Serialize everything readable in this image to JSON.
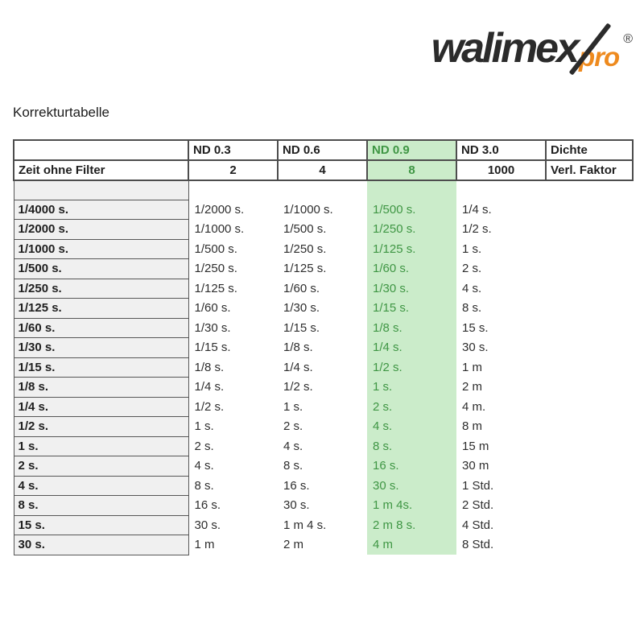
{
  "logo": {
    "brand": "walimex",
    "sub": "pro",
    "registered": "®",
    "brand_color": "#2b2b2b",
    "sub_color": "#ee8a1e"
  },
  "page_title": "Korrekturtabelle",
  "table": {
    "highlight_column": "ND 0.9",
    "colors": {
      "highlight_bg": "#cbecca",
      "highlight_text": "#3f9644",
      "row_header_bg": "#f0f0f0",
      "header_border": "#4d4d4d"
    },
    "header_row1": [
      "",
      "ND 0.3",
      "ND 0.6",
      "ND 0.9",
      "ND 3.0",
      "Dichte"
    ],
    "header_row2": [
      "Zeit ohne Filter",
      "2",
      "4",
      "8",
      "1000",
      "Verl. Faktor"
    ],
    "rows": [
      [
        "1/4000 s.",
        "1/2000 s.",
        "1/1000 s.",
        "1/500 s.",
        "1/4 s."
      ],
      [
        "1/2000 s.",
        "1/1000 s.",
        "1/500 s.",
        "1/250 s.",
        "1/2 s."
      ],
      [
        "1/1000 s.",
        "1/500 s.",
        "1/250 s.",
        "1/125 s.",
        "1 s."
      ],
      [
        "1/500 s.",
        "1/250 s.",
        "1/125 s.",
        "1/60 s.",
        "2 s."
      ],
      [
        "1/250 s.",
        "1/125 s.",
        "1/60 s.",
        "1/30 s.",
        "4 s."
      ],
      [
        "1/125 s.",
        "1/60 s.",
        "1/30 s.",
        "1/15 s.",
        "8 s."
      ],
      [
        "1/60 s.",
        "1/30 s.",
        "1/15 s.",
        "1/8 s.",
        "15 s."
      ],
      [
        "1/30 s.",
        "1/15 s.",
        "1/8 s.",
        "1/4 s.",
        "30 s."
      ],
      [
        "1/15 s.",
        "1/8 s.",
        "1/4 s.",
        "1/2 s.",
        "1 m"
      ],
      [
        "1/8 s.",
        "1/4 s.",
        "1/2 s.",
        "1 s.",
        "2 m"
      ],
      [
        "1/4 s.",
        "1/2 s.",
        "1 s.",
        "2 s.",
        "4 m."
      ],
      [
        "1/2 s.",
        "1 s.",
        "2 s.",
        "4 s.",
        "8 m"
      ],
      [
        "1 s.",
        "2 s.",
        "4 s.",
        "8 s.",
        "15 m"
      ],
      [
        "2 s.",
        "4 s.",
        "8 s.",
        "16 s.",
        "30 m"
      ],
      [
        "4 s.",
        "8 s.",
        "16 s.",
        "30 s.",
        "1 Std."
      ],
      [
        "8 s.",
        "16 s.",
        "30 s.",
        "1 m 4s.",
        "2 Std."
      ],
      [
        "15 s.",
        "30 s.",
        "1 m 4 s.",
        "2 m 8 s.",
        "4 Std."
      ],
      [
        "30 s.",
        "1 m",
        "2 m",
        "4 m",
        "8 Std."
      ]
    ]
  }
}
